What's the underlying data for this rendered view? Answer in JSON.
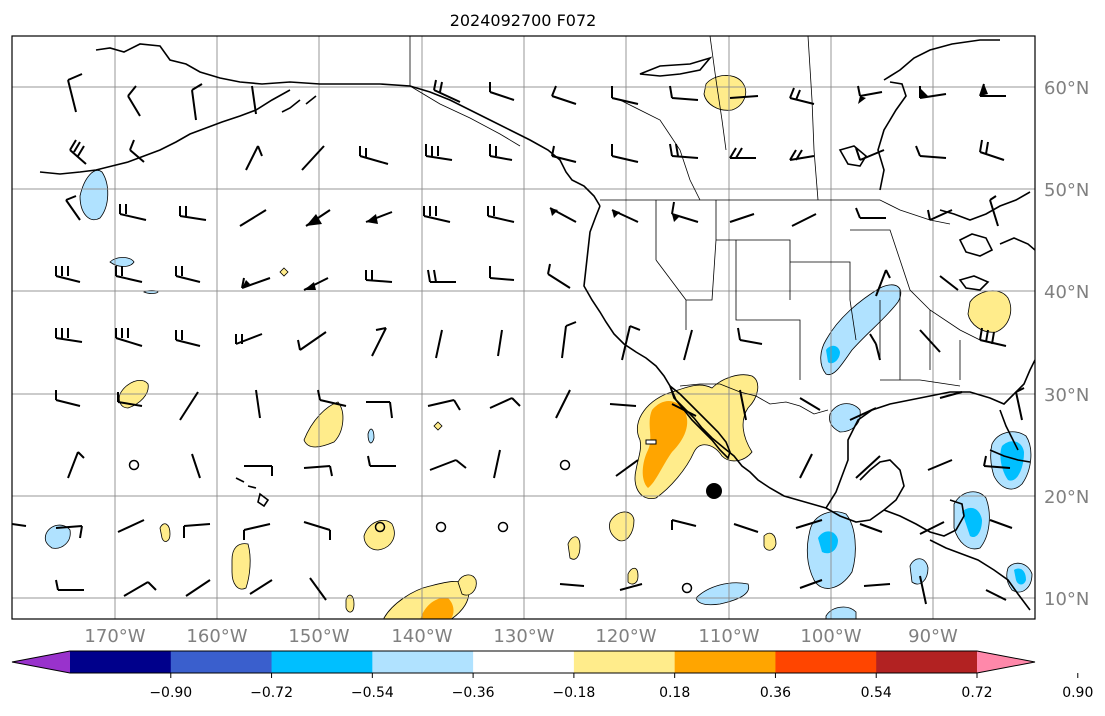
{
  "map": {
    "title": "2024092700 F072",
    "lat_labels": [
      "60°N",
      "50°N",
      "40°N",
      "30°N",
      "20°N",
      "10°N"
    ],
    "lon_labels": [
      "170°W",
      "160°W",
      "150°W",
      "140°W",
      "130°W",
      "120°W",
      "110°W",
      "100°W",
      "90°W"
    ]
  },
  "colorbar": {
    "colors": [
      "#9932CC",
      "#00008B",
      "#3A5FCD",
      "#00BFFF",
      "#B0E2FF",
      "#FFFFFF",
      "#FFEC8B",
      "#FFA500",
      "#FF4500",
      "#B22222",
      "#FF88AA"
    ],
    "tick_labels": [
      "−0.90",
      "−0.72",
      "−0.54",
      "−0.36",
      "−0.18",
      "0.18",
      "0.36",
      "0.54",
      "0.72",
      "0.90"
    ]
  }
}
